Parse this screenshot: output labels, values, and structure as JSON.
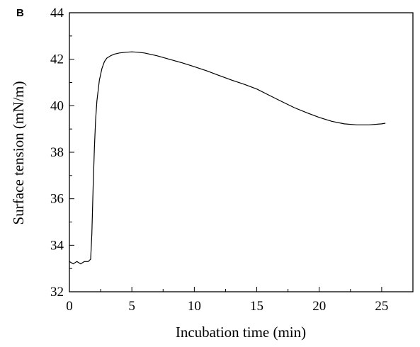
{
  "panel_label": "B",
  "chart_data": {
    "type": "line",
    "title": "",
    "xlabel": "Incubation time (min)",
    "ylabel": "Surface tension (mN/m)",
    "xlim": [
      0,
      27.5
    ],
    "ylim": [
      32,
      44
    ],
    "x_ticks": [
      0,
      5,
      10,
      15,
      20,
      25
    ],
    "x_tick_labels": [
      "0",
      "5",
      "10",
      "15",
      "20",
      "25"
    ],
    "y_ticks": [
      32,
      34,
      36,
      38,
      40,
      42,
      44
    ],
    "y_tick_labels": [
      "32",
      "34",
      "36",
      "38",
      "40",
      "42",
      "44"
    ],
    "x_minor_step": 2.5,
    "y_minor_step": 1,
    "grid": false,
    "legend": "none",
    "line_color": "#000000",
    "series": [
      {
        "x": [
          0,
          0.3,
          0.6,
          0.9,
          1.2,
          1.5,
          1.7,
          1.8,
          1.9,
          2.0,
          2.1,
          2.2,
          2.4,
          2.6,
          2.8,
          3.0,
          3.3,
          3.6,
          4.0,
          4.5,
          5.0,
          5.5,
          6,
          7,
          8,
          9,
          10,
          11,
          12,
          13,
          14,
          15,
          16,
          17,
          18,
          19,
          20,
          21,
          22,
          23,
          24,
          25,
          25.3
        ],
        "y": [
          33.3,
          33.2,
          33.3,
          33.2,
          33.3,
          33.3,
          33.4,
          34.5,
          36.5,
          38.2,
          39.4,
          40.2,
          41.1,
          41.6,
          41.9,
          42.05,
          42.15,
          42.22,
          42.27,
          42.3,
          42.32,
          42.3,
          42.27,
          42.15,
          42.0,
          41.85,
          41.68,
          41.5,
          41.3,
          41.1,
          40.92,
          40.72,
          40.45,
          40.18,
          39.92,
          39.7,
          39.5,
          39.33,
          39.22,
          39.18,
          39.18,
          39.22,
          39.25
        ]
      }
    ]
  }
}
